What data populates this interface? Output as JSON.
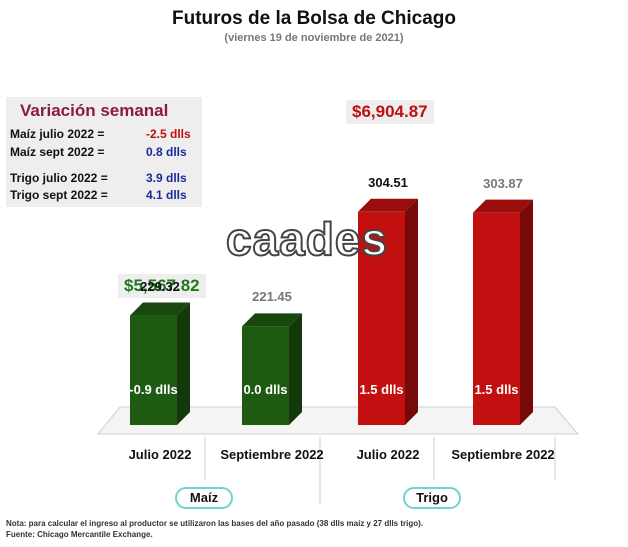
{
  "title": "Futuros de la Bolsa de Chicago",
  "subtitle": "(viernes 19 de noviembre de 2021)",
  "weekly": {
    "title": "Variación semanal",
    "rows": [
      {
        "label": "Maíz julio 2022  =",
        "value": "-2.5 dlls",
        "color": "#c01010"
      },
      {
        "label": "Maíz sept 2022  =",
        "value": "0.8 dlls",
        "color": "#1a2a9a"
      },
      {
        "label": "Trigo julio 2022 =",
        "value": "3.9 dlls",
        "color": "#1a2a9a"
      },
      {
        "label": "Trigo sept 2022 =",
        "value": "4.1 dlls",
        "color": "#1a2a9a"
      }
    ]
  },
  "totals": {
    "maiz": "$5,567.82",
    "trigo": "$6,904.87"
  },
  "watermark": "caades",
  "groups": {
    "maiz": "Maíz",
    "trigo": "Trigo"
  },
  "chart_data": {
    "type": "bar",
    "categories": [
      "Julio 2022",
      "Septiembre 2022",
      "Julio 2022",
      "Septiembre 2022"
    ],
    "values": [
      229.32,
      221.45,
      304.51,
      303.87
    ],
    "value_labels": [
      "229.32",
      "221.45",
      "304.51",
      "303.87"
    ],
    "changes": [
      "-0.9 dlls",
      "0.0 dlls",
      "1.5 dlls",
      "1.5 dlls"
    ],
    "groups": [
      "Maíz",
      "Maíz",
      "Trigo",
      "Trigo"
    ],
    "colors": [
      "#1f5a13",
      "#1f5a13",
      "#c20f0f",
      "#c20f0f"
    ],
    "value_label_colors": [
      "#111111",
      "#777777",
      "#111111",
      "#777777"
    ],
    "grid": false
  },
  "notes": {
    "note": "Nota: para calcular el ingreso al productor se utilizaron las bases del año pasado (38 dlls maíz y 27 dlls trigo).",
    "source": "Fuente: Chicago Mercantile Exchange."
  }
}
